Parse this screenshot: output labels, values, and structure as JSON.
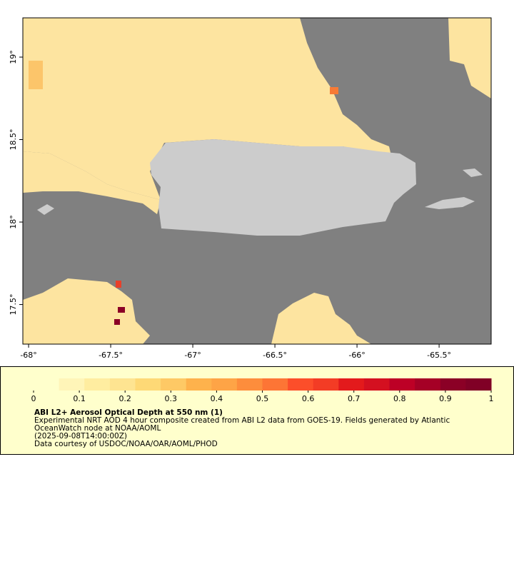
{
  "map": {
    "lon_lim": [
      -68.035,
      -65.183
    ],
    "lat_lim": [
      17.26,
      19.238
    ],
    "lon_ticks": [
      {
        "value": -68,
        "label": "-68°"
      },
      {
        "value": -67.5,
        "label": "-67.5°"
      },
      {
        "value": -67,
        "label": "-67°"
      },
      {
        "value": -66.5,
        "label": "-66.5°"
      },
      {
        "value": -66,
        "label": "-66°"
      },
      {
        "value": -65.5,
        "label": "-65.5°"
      }
    ],
    "lat_ticks": [
      {
        "value": 17.5,
        "label": "17.5°"
      },
      {
        "value": 18,
        "label": "18°"
      },
      {
        "value": 18.5,
        "label": "18.5°"
      },
      {
        "value": 19,
        "label": "19°"
      }
    ]
  },
  "colorbar": {
    "lim": [
      0,
      1
    ],
    "ticks": [
      0,
      0.1,
      0.2,
      0.3,
      0.4,
      0.5,
      0.6,
      0.7,
      0.8,
      0.9,
      1
    ],
    "colors": [
      "#ffffcc",
      "#fff5b8",
      "#ffeda0",
      "#fee491",
      "#fed976",
      "#fec965",
      "#feb24c",
      "#fea446",
      "#fd8d3c",
      "#fd7535",
      "#fc4e2a",
      "#f33c25",
      "#e31a1c",
      "#d41020",
      "#bd0026",
      "#a50026",
      "#8b0026",
      "#800026"
    ]
  },
  "caption": {
    "title": "ABI L2+ Aerosol Optical Depth at 550 nm (1)",
    "lines": [
      "Experimental NRT AOD 4 hour composite created from ABI L2 data from GOES-19. Fields generated by Atlantic",
      "OceanWatch node at NOAA/AOML",
      "(2025-09-08T14:00:00Z)",
      "Data courtesy of USDOC/NOAA/OAR/AOML/PHOD"
    ]
  }
}
